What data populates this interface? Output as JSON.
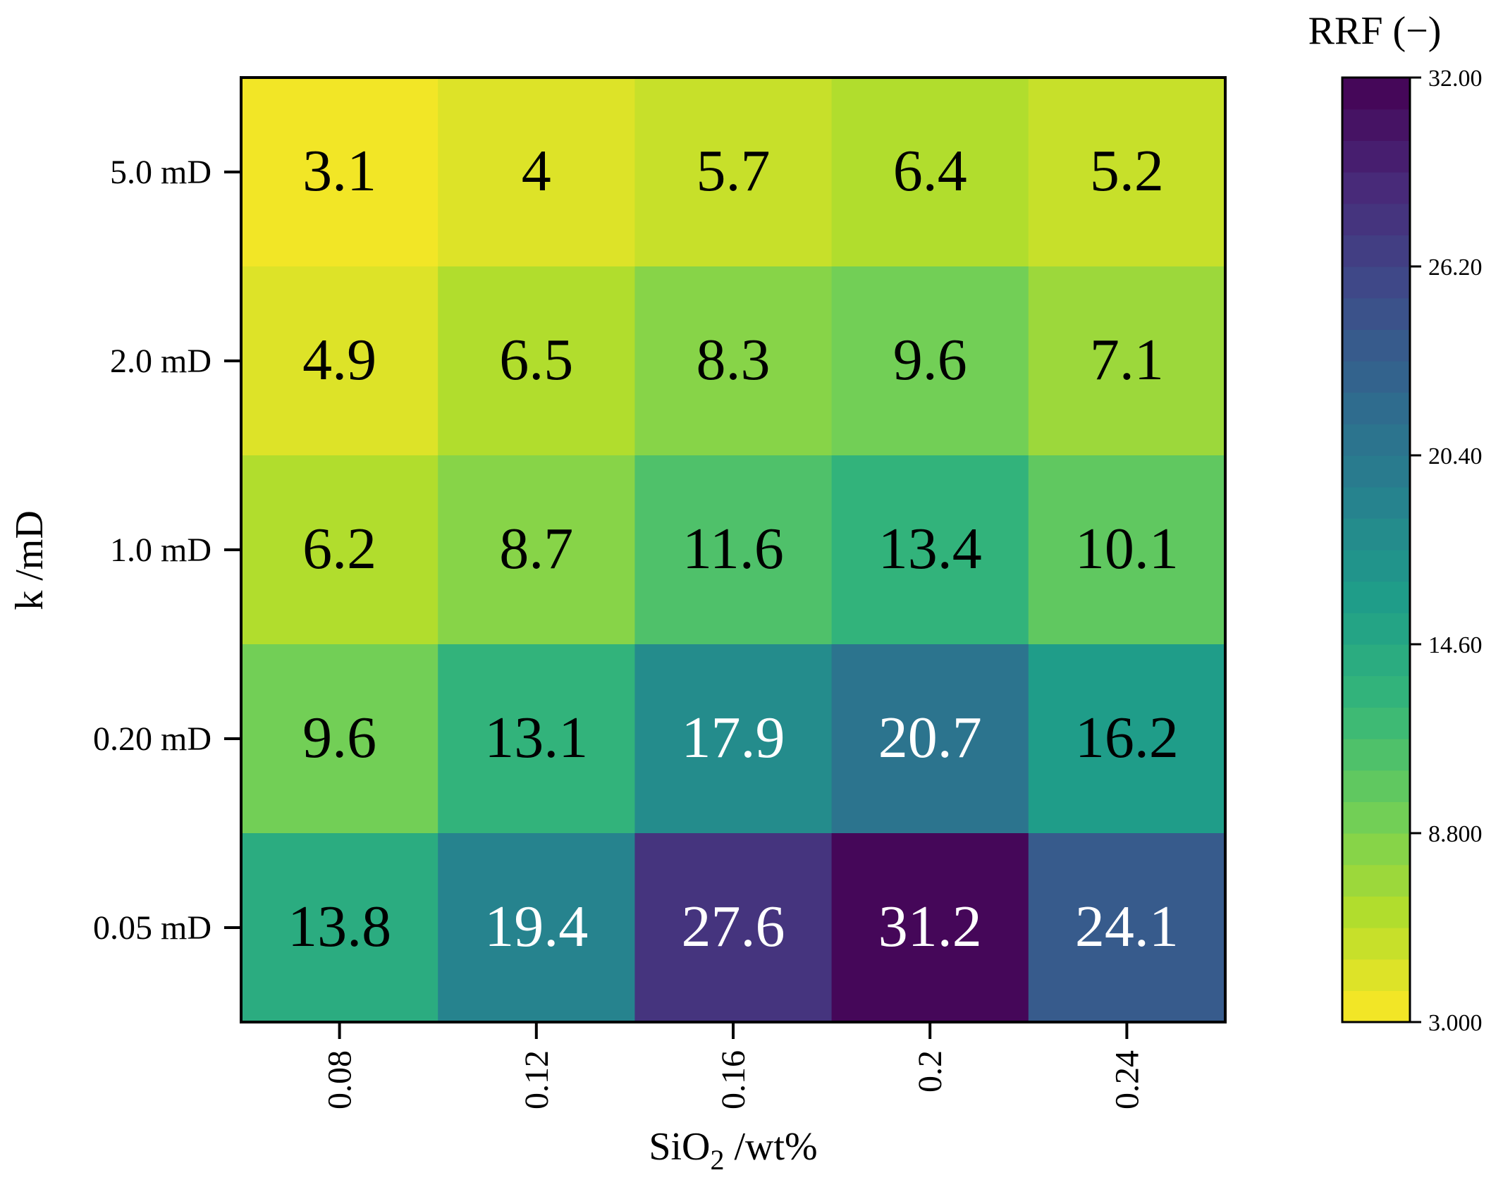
{
  "chart_data": {
    "type": "heatmap",
    "xlabel_main": "SiO",
    "xlabel_sub": "2",
    "xlabel_rest": " /wt%",
    "ylabel": "k /mD",
    "x_ticks": [
      "0.08",
      "0.12",
      "0.16",
      "0.2",
      "0.24"
    ],
    "y_ticks": [
      "5.0 mD",
      "2.0 mD",
      "1.0 mD",
      "0.20 mD",
      "0.05 mD"
    ],
    "values": [
      [
        3.1,
        4,
        5.7,
        6.4,
        5.2
      ],
      [
        4.9,
        6.5,
        8.3,
        9.6,
        7.1
      ],
      [
        6.2,
        8.7,
        11.6,
        13.4,
        10.1
      ],
      [
        9.6,
        13.1,
        17.9,
        20.7,
        16.2
      ],
      [
        13.8,
        19.4,
        27.6,
        31.2,
        24.1
      ]
    ],
    "value_labels": [
      [
        "3.1",
        "4",
        "5.7",
        "6.4",
        "5.2"
      ],
      [
        "4.9",
        "6.5",
        "8.3",
        "9.6",
        "7.1"
      ],
      [
        "6.2",
        "8.7",
        "11.6",
        "13.4",
        "10.1"
      ],
      [
        "9.6",
        "13.1",
        "17.9",
        "20.7",
        "16.2"
      ],
      [
        "13.8",
        "19.4",
        "27.6",
        "31.2",
        "24.1"
      ]
    ],
    "colorbar": {
      "title": "RRF (−)",
      "min": 3.0,
      "max": 32.0,
      "tick_labels": [
        "32.00",
        "26.20",
        "20.40",
        "14.60",
        "8.800",
        "3.000"
      ],
      "tick_values": [
        32.0,
        26.2,
        20.4,
        14.6,
        8.8,
        3.0
      ],
      "levels": 30,
      "colormap": "viridis_r"
    }
  }
}
